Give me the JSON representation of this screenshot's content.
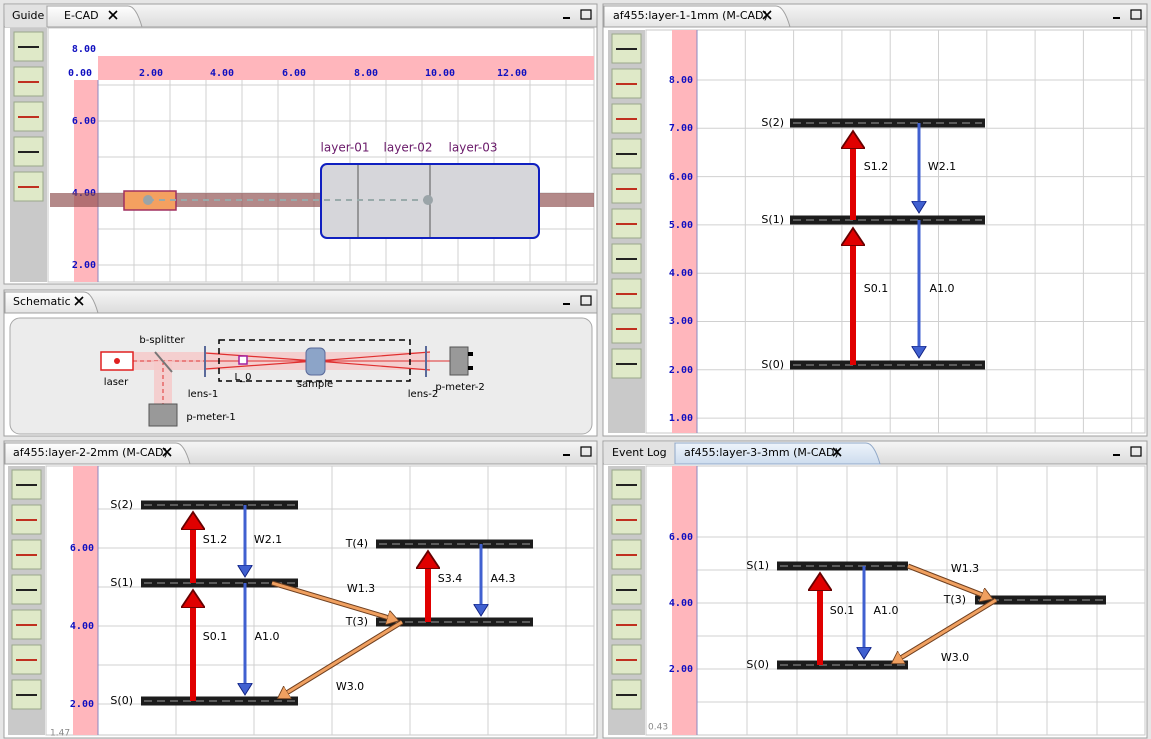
{
  "ecad": {
    "tabs": [
      "Guide",
      "E-CAD"
    ],
    "x_ticks": [
      "0.00",
      "2.00",
      "4.00",
      "6.00",
      "8.00",
      "10.00",
      "12.00"
    ],
    "y_ticks": [
      "8.00",
      "6.00",
      "4.00",
      "2.00"
    ],
    "layers": [
      "layer-01",
      "layer-02",
      "layer-03"
    ]
  },
  "schematic": {
    "tab": "Schematic",
    "labels": [
      "b-splitter",
      "laser",
      "lens-1",
      "L_0",
      "sample",
      "lens-2",
      "p-meter-2",
      "p-meter-1"
    ]
  },
  "layer1": {
    "tab": "af455:layer-1-1mm (M-CAD)",
    "y_ticks": [
      "8.00",
      "7.00",
      "6.00",
      "5.00",
      "4.00",
      "3.00",
      "2.00",
      "1.00"
    ],
    "states": [
      "S(2)",
      "S(1)",
      "S(0)"
    ],
    "transitions": [
      "S1.2",
      "W2.1",
      "S0.1",
      "A1.0"
    ]
  },
  "layer2": {
    "tab": "af455:layer-2-2mm (M-CAD)",
    "y_ticks": [
      "6.00",
      "4.00",
      "2.00"
    ],
    "states": [
      "S(2)",
      "S(1)",
      "S(0)",
      "T(4)",
      "T(3)"
    ],
    "transitions": [
      "S1.2",
      "W2.1",
      "S0.1",
      "A1.0",
      "W1.3",
      "W3.0",
      "S3.4",
      "A4.3"
    ],
    "readout": "1.47"
  },
  "layer3": {
    "tabs": [
      "Event Log",
      "af455:layer-3-3mm (M-CAD)"
    ],
    "y_ticks": [
      "6.00",
      "4.00",
      "2.00"
    ],
    "states": [
      "S(1)",
      "S(0)",
      "T(3)"
    ],
    "transitions": [
      "S0.1",
      "A1.0",
      "W1.3",
      "W3.0"
    ],
    "readout": "0.43"
  }
}
